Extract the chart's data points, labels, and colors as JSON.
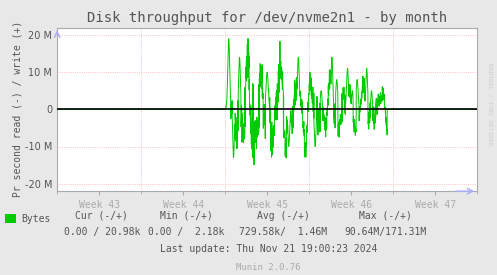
{
  "title": "Disk throughput for /dev/nvme2n1 - by month",
  "ylabel": "Pr second read (-) / write (+)",
  "bg_color": "#e8e8e8",
  "plot_bg_color": "#ffffff",
  "grid_color": "#ffaaaa",
  "line_color": "#00cc00",
  "zero_line_color": "#000000",
  "border_color": "#aaaaaa",
  "text_color": "#555555",
  "watermark_color": "#cccccc",
  "ylim": [
    -22000000,
    22000000
  ],
  "yticks": [
    -20000000,
    -10000000,
    0,
    10000000,
    20000000
  ],
  "week_labels": [
    "Week 43",
    "Week 44",
    "Week 45",
    "Week 46",
    "Week 47"
  ],
  "watermark": "RRDTOOL / TOBI OETIKER",
  "legend_label": "Bytes",
  "cur_label": "Cur (-/+)",
  "min_label": "Min (-/+)",
  "avg_label": "Avg (-/+)",
  "max_label": "Max (-/+)",
  "cur_val": "0.00 / 20.98k",
  "min_val": "0.00 /  2.18k",
  "avg_val": "729.58k/  1.46M",
  "max_val": "90.64M/171.31M",
  "last_update": "Last update: Thu Nov 21 19:00:23 2024",
  "munin_version": "Munin 2.0.76",
  "title_fontsize": 10,
  "axis_fontsize": 7,
  "tick_fontsize": 7,
  "legend_fontsize": 7
}
